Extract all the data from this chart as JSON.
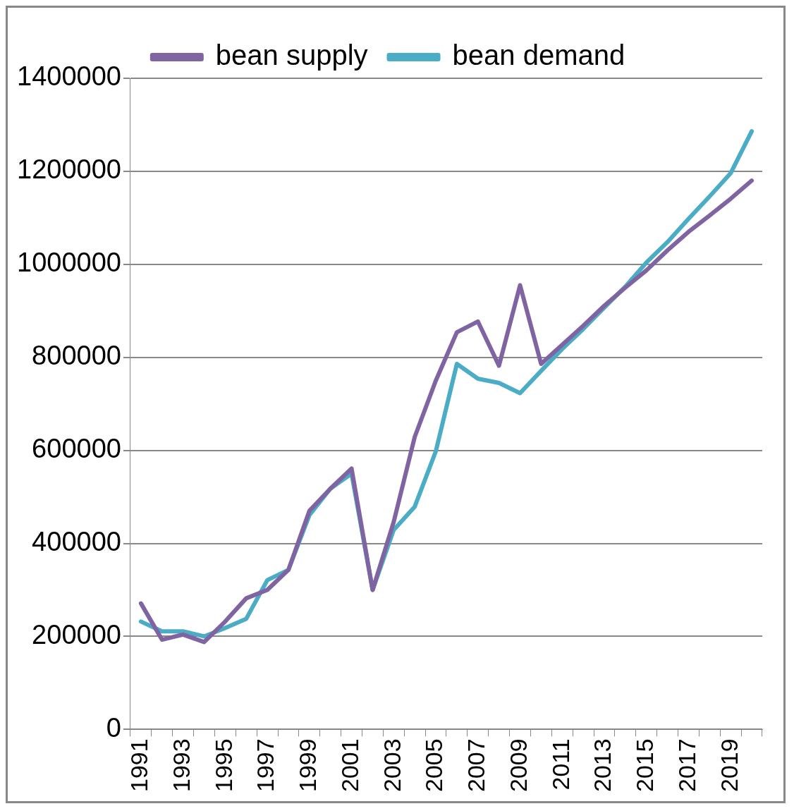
{
  "chart_data": {
    "type": "line",
    "categories": [
      "1991",
      null,
      "1993",
      null,
      "1995",
      null,
      "1997",
      null,
      "1999",
      null,
      "2001",
      null,
      "2003",
      null,
      "2005",
      null,
      "2007",
      null,
      "2009",
      null,
      "2011",
      null,
      "2013",
      null,
      "2015",
      null,
      "2017",
      null,
      "2019",
      null
    ],
    "series": [
      {
        "name": "bean supply",
        "color": "#8064a2",
        "values": [
          271000,
          193000,
          204000,
          188000,
          232000,
          282000,
          300000,
          343000,
          470000,
          518000,
          561000,
          300000,
          446000,
          629000,
          750000,
          854000,
          877000,
          782000,
          955000,
          786000,
          827000,
          868000,
          911000,
          950000,
          987000,
          1030000,
          1070000,
          1105000,
          1141000,
          1180000
        ]
      },
      {
        "name": "bean demand",
        "color": "#4bacc6",
        "values": [
          232000,
          211000,
          211000,
          200000,
          218000,
          238000,
          321000,
          343000,
          461000,
          518000,
          550000,
          300000,
          429000,
          479000,
          598000,
          786000,
          754000,
          745000,
          723000,
          771000,
          818000,
          861000,
          907000,
          952000,
          1004000,
          1048000,
          1098000,
          1146000,
          1196000,
          1286000
        ]
      }
    ],
    "ylim": [
      0,
      1400000
    ],
    "yticks": [
      0,
      200000,
      400000,
      600000,
      800000,
      1000000,
      1200000,
      1400000
    ],
    "grid": "y",
    "legend": "top",
    "marker": "none",
    "line_style": "solid"
  }
}
